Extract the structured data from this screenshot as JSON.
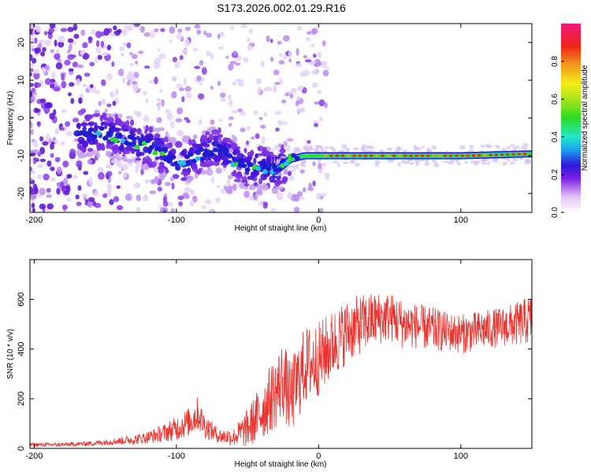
{
  "figure_title": "S173.2026.002.01.29.R16",
  "colors": {
    "snr_line": "#e8332e",
    "ridge": "#e8332e",
    "frame": "#000000"
  },
  "chart_data": [
    {
      "type": "heatmap",
      "title": "S173.2026.002.01.29.R16",
      "xlabel": "Height of straight line (km)",
      "ylabel": "Frequency (Hz)",
      "xlim": [
        -203,
        150
      ],
      "ylim": [
        -25,
        25
      ],
      "xticks": [
        -200,
        -100,
        0,
        100
      ],
      "yticks": [
        -20,
        -10,
        0,
        10,
        20
      ],
      "ridge": {
        "description_points_x": [
          -150,
          -130,
          -110,
          -100,
          -90,
          -80,
          -70,
          -60,
          -50,
          -40,
          -30,
          -20,
          -10,
          0,
          20,
          50,
          100,
          150
        ],
        "description_points_y": [
          -4,
          -6,
          -9,
          -12,
          -11,
          -9,
          -8,
          -11,
          -13,
          -13,
          -14,
          -11,
          -10,
          -10,
          -10,
          -10,
          -10,
          -9.5
        ]
      },
      "colorbar": {
        "label": "Normalized spectral amplitude",
        "range": [
          0,
          1
        ],
        "ticks": [
          0.0,
          0.2,
          0.4,
          0.6,
          0.8
        ]
      }
    },
    {
      "type": "line",
      "title": "",
      "xlabel": "Height of straight line (km)",
      "ylabel": "SNR (10 * v/v)",
      "xlim": [
        -203,
        150
      ],
      "ylim": [
        0,
        760
      ],
      "xticks": [
        -200,
        -100,
        0,
        100
      ],
      "yticks": [
        0,
        200,
        400,
        600
      ],
      "series": [
        {
          "name": "SNR",
          "x": [
            -203,
            -180,
            -160,
            -150,
            -140,
            -130,
            -120,
            -110,
            -100,
            -90,
            -85,
            -80,
            -70,
            -60,
            -50,
            -40,
            -30,
            -25,
            -20,
            -10,
            0,
            10,
            20,
            30,
            40,
            50,
            60,
            70,
            80,
            90,
            100,
            110,
            120,
            130,
            140,
            150
          ],
          "mean": [
            15,
            15,
            20,
            25,
            30,
            35,
            45,
            60,
            80,
            110,
            140,
            90,
            50,
            45,
            80,
            150,
            230,
            280,
            200,
            330,
            360,
            420,
            470,
            500,
            520,
            530,
            500,
            490,
            480,
            470,
            460,
            470,
            480,
            490,
            500,
            520
          ],
          "amplitude": [
            8,
            8,
            10,
            12,
            15,
            20,
            25,
            35,
            50,
            60,
            70,
            50,
            30,
            35,
            80,
            120,
            150,
            160,
            150,
            160,
            150,
            140,
            130,
            120,
            110,
            100,
            100,
            90,
            90,
            80,
            80,
            80,
            80,
            80,
            90,
            100
          ]
        }
      ]
    }
  ]
}
